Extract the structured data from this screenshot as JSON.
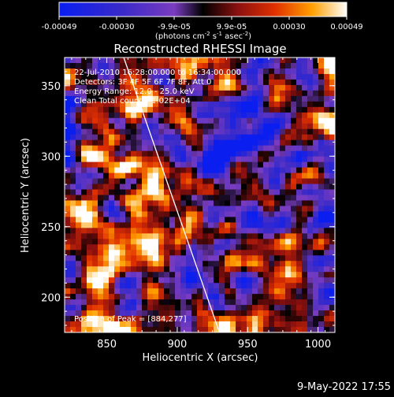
{
  "chart_data": {
    "type": "heatmap",
    "title": "Reconstructed RHESSI Image",
    "xlabel": "Heliocentric X (arcsec)",
    "ylabel": "Heliocentric Y (arcsec)",
    "xlim": [
      820,
      1012
    ],
    "ylim": [
      175,
      370
    ],
    "xticks": [
      "850",
      "900",
      "950",
      "1000"
    ],
    "yticks": [
      "200",
      "250",
      "300",
      "350"
    ],
    "colorbar": {
      "ticks": [
        "-0.00049",
        "-0.00030",
        "-9.9e-05",
        "9.9e-05",
        "0.00030",
        "0.00049"
      ],
      "unit_label": "(photons cm",
      "unit_sup1": "-2",
      "unit_mid": " s",
      "unit_sup2": "-1",
      "unit_end": " asec",
      "unit_sup3": "-2",
      "unit_close": ")",
      "range": [
        -0.00049,
        0.00049
      ]
    },
    "annotations": [
      "22-Jul-2010 16:28:00.000 to 16:34:00.000",
      "Detectors: 3F 4F 5F 6F 7F 8F, Att 0",
      "Energy Range: 12.0 - 25.0 keV",
      "Clean    Total counts: 1.02E+04"
    ],
    "peak_label": "Position of Peak = [884,277]",
    "peak_position": [
      884,
      277
    ],
    "limb_line": {
      "x": [
        862,
        930
      ],
      "y": [
        370,
        175
      ]
    },
    "timestamp": "9-May-2022 17:55"
  }
}
